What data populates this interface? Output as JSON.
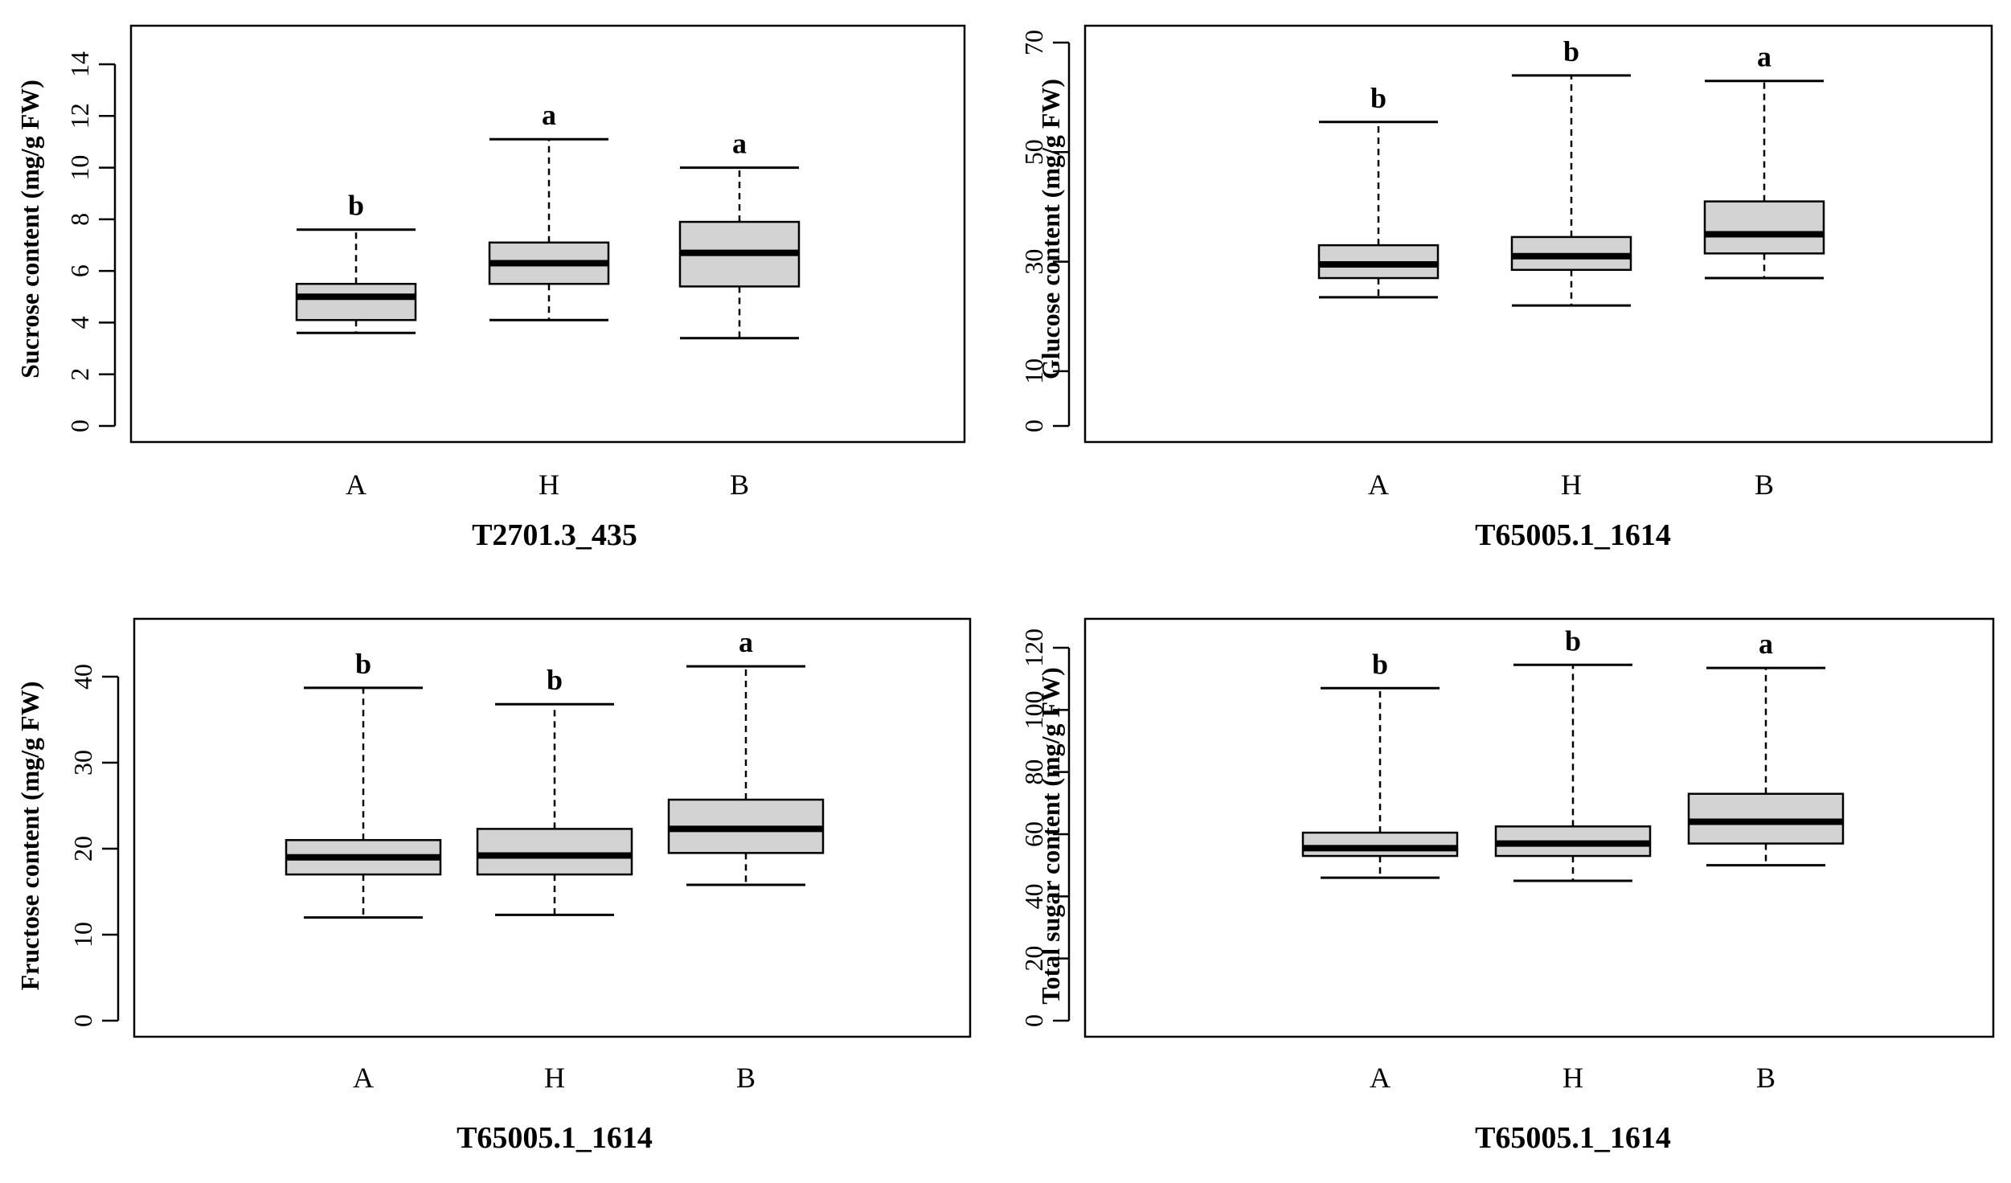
{
  "chart_data": [
    {
      "type": "box",
      "panel": "top-left",
      "title": "",
      "ylabel": "Sucrose content  (mg/g FW)",
      "xlabel": "T2701.3_435",
      "ylim": [
        0,
        14
      ],
      "yticks": [
        0,
        2,
        4,
        6,
        8,
        10,
        12,
        14
      ],
      "categories": [
        "A",
        "H",
        "B"
      ],
      "boxes": [
        {
          "category": "A",
          "whisker_low": 3.6,
          "q1": 4.1,
          "median": 5.0,
          "q3": 5.5,
          "whisker_high": 7.6,
          "letter": "b"
        },
        {
          "category": "H",
          "whisker_low": 4.1,
          "q1": 5.5,
          "median": 6.3,
          "q3": 7.1,
          "whisker_high": 11.1,
          "letter": "a"
        },
        {
          "category": "B",
          "whisker_low": 3.4,
          "q1": 5.4,
          "median": 6.7,
          "q3": 7.9,
          "whisker_high": 10.0,
          "letter": "a"
        }
      ]
    },
    {
      "type": "box",
      "panel": "top-right",
      "title": "",
      "ylabel": "Glucose content  (mg/g FW)",
      "xlabel": "T65005.1_1614",
      "ylim": [
        0,
        70
      ],
      "yticks": [
        0,
        10,
        30,
        50,
        70
      ],
      "categories": [
        "A",
        "H",
        "B"
      ],
      "boxes": [
        {
          "category": "A",
          "whisker_low": 23.5,
          "q1": 27.0,
          "median": 29.5,
          "q3": 33.0,
          "whisker_high": 55.5,
          "letter": "b"
        },
        {
          "category": "H",
          "whisker_low": 22.0,
          "q1": 28.5,
          "median": 31.0,
          "q3": 34.5,
          "whisker_high": 64.0,
          "letter": "b"
        },
        {
          "category": "B",
          "whisker_low": 27.0,
          "q1": 31.5,
          "median": 35.0,
          "q3": 41.0,
          "whisker_high": 63.0,
          "letter": "a"
        }
      ]
    },
    {
      "type": "box",
      "panel": "bottom-left",
      "title": "",
      "ylabel": "Fructose content  (mg/g FW)",
      "xlabel": "T65005.1_1614",
      "ylim": [
        0,
        40
      ],
      "yticks": [
        0,
        10,
        20,
        30,
        40
      ],
      "categories": [
        "A",
        "H",
        "B"
      ],
      "boxes": [
        {
          "category": "A",
          "whisker_low": 12.0,
          "q1": 17.0,
          "median": 19.0,
          "q3": 21.0,
          "whisker_high": 38.7,
          "letter": "b"
        },
        {
          "category": "H",
          "whisker_low": 12.3,
          "q1": 17.0,
          "median": 19.2,
          "q3": 22.3,
          "whisker_high": 36.8,
          "letter": "b"
        },
        {
          "category": "B",
          "whisker_low": 15.8,
          "q1": 19.5,
          "median": 22.3,
          "q3": 25.7,
          "whisker_high": 41.2,
          "letter": "a"
        }
      ]
    },
    {
      "type": "box",
      "panel": "bottom-right",
      "title": "",
      "ylabel": "Total sugar content  (mg/g FW)",
      "xlabel": "T65005.1_1614",
      "ylim": [
        0,
        120
      ],
      "yticks": [
        0,
        20,
        40,
        60,
        80,
        100,
        120
      ],
      "categories": [
        "A",
        "H",
        "B"
      ],
      "boxes": [
        {
          "category": "A",
          "whisker_low": 46.0,
          "q1": 53.0,
          "median": 55.5,
          "q3": 60.5,
          "whisker_high": 107.0,
          "letter": "b"
        },
        {
          "category": "H",
          "whisker_low": 45.0,
          "q1": 53.0,
          "median": 57.0,
          "q3": 62.5,
          "whisker_high": 114.5,
          "letter": "b"
        },
        {
          "category": "B",
          "whisker_low": 50.0,
          "q1": 57.0,
          "median": 64.0,
          "q3": 73.0,
          "whisker_high": 113.5,
          "letter": "a"
        }
      ]
    }
  ],
  "style": {
    "box_fill": "#d3d3d3",
    "line_color": "#000000",
    "background": "#ffffff"
  }
}
